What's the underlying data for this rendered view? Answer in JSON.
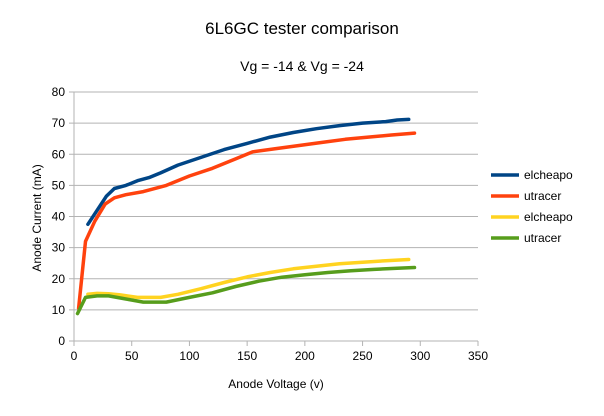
{
  "chart_data": {
    "type": "line",
    "title": "6L6GC tester comparison",
    "subtitle": "Vg = -14 & Vg = -24",
    "xlabel": "Anode Voltage (v)",
    "ylabel": "Anode Current (mA)",
    "xlim": [
      0,
      350
    ],
    "ylim": [
      0,
      80
    ],
    "xticks": [
      0,
      50,
      100,
      150,
      200,
      250,
      300,
      350
    ],
    "yticks": [
      0,
      10,
      20,
      30,
      40,
      50,
      60,
      70,
      80
    ],
    "grid": "horizontal",
    "legend_position": "right",
    "series": [
      {
        "name": "elcheapo",
        "color": "#004586",
        "points": [
          [
            12,
            37.5
          ],
          [
            20,
            42
          ],
          [
            28,
            46.5
          ],
          [
            35,
            49
          ],
          [
            45,
            50
          ],
          [
            55,
            51.5
          ],
          [
            65,
            52.5
          ],
          [
            75,
            54
          ],
          [
            90,
            56.5
          ],
          [
            110,
            59
          ],
          [
            130,
            61.5
          ],
          [
            150,
            63.5
          ],
          [
            170,
            65.5
          ],
          [
            190,
            67
          ],
          [
            210,
            68.2
          ],
          [
            230,
            69.2
          ],
          [
            250,
            70
          ],
          [
            270,
            70.5
          ],
          [
            280,
            71
          ],
          [
            290,
            71.2
          ]
        ]
      },
      {
        "name": "utracer",
        "color": "#ff420e",
        "points": [
          [
            4,
            10.5
          ],
          [
            10,
            32
          ],
          [
            18,
            38.5
          ],
          [
            27,
            44
          ],
          [
            35,
            46
          ],
          [
            45,
            47
          ],
          [
            60,
            48
          ],
          [
            80,
            50
          ],
          [
            100,
            53
          ],
          [
            120,
            55.5
          ],
          [
            140,
            58.5
          ],
          [
            155,
            60.8
          ],
          [
            175,
            61.8
          ],
          [
            195,
            62.8
          ],
          [
            215,
            63.8
          ],
          [
            235,
            64.8
          ],
          [
            255,
            65.5
          ],
          [
            275,
            66.2
          ],
          [
            295,
            66.8
          ]
        ]
      },
      {
        "name": "elcheapo",
        "color": "#ffd320",
        "points": [
          [
            12,
            15
          ],
          [
            20,
            15.3
          ],
          [
            30,
            15.2
          ],
          [
            40,
            14.8
          ],
          [
            55,
            14
          ],
          [
            75,
            14
          ],
          [
            90,
            15
          ],
          [
            110,
            16.8
          ],
          [
            130,
            18.8
          ],
          [
            150,
            20.6
          ],
          [
            170,
            22
          ],
          [
            190,
            23.2
          ],
          [
            210,
            24
          ],
          [
            230,
            24.8
          ],
          [
            250,
            25.3
          ],
          [
            270,
            25.8
          ],
          [
            290,
            26.2
          ]
        ]
      },
      {
        "name": "utracer",
        "color": "#579d1c",
        "points": [
          [
            3,
            8.8
          ],
          [
            10,
            14
          ],
          [
            20,
            14.5
          ],
          [
            30,
            14.5
          ],
          [
            45,
            13.5
          ],
          [
            60,
            12.5
          ],
          [
            80,
            12.5
          ],
          [
            100,
            14
          ],
          [
            120,
            15.5
          ],
          [
            140,
            17.5
          ],
          [
            160,
            19.2
          ],
          [
            180,
            20.5
          ],
          [
            200,
            21.3
          ],
          [
            220,
            22
          ],
          [
            240,
            22.6
          ],
          [
            260,
            23
          ],
          [
            280,
            23.4
          ],
          [
            295,
            23.6
          ]
        ]
      }
    ]
  }
}
